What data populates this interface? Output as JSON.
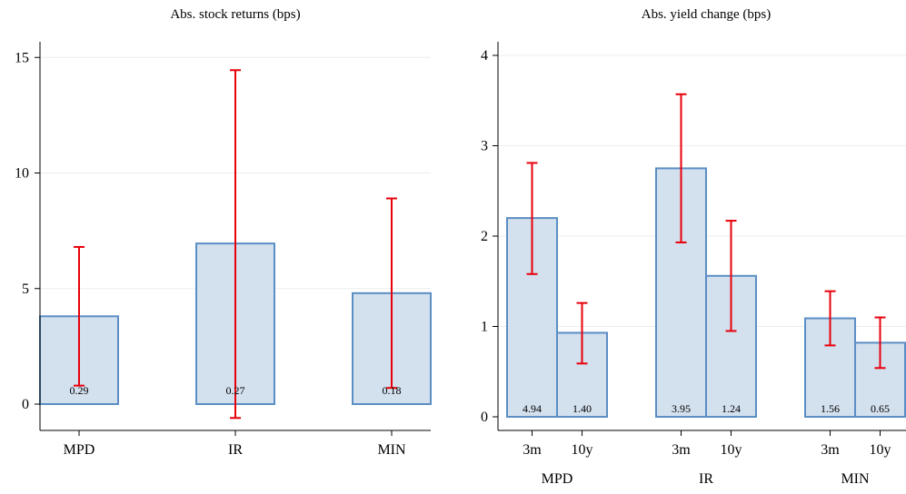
{
  "chart_data": [
    {
      "type": "bar",
      "title": "Abs. stock returns (bps)",
      "categories": [
        "MPD",
        "IR",
        "MIN"
      ],
      "values": [
        3.8,
        6.95,
        4.8
      ],
      "error_low": [
        0.8,
        -0.6,
        0.7
      ],
      "error_high": [
        6.8,
        14.45,
        8.9
      ],
      "bar_labels": [
        "0.29",
        "0.27",
        "0.18"
      ],
      "ylim": [
        0,
        15
      ],
      "yticks": [
        0,
        5,
        10,
        15
      ],
      "grid": true,
      "colors": {
        "bar_fill": "#d3e0ee",
        "bar_edge": "#5b8ec4",
        "error": "#e8000b",
        "grid": "#ececec"
      }
    },
    {
      "type": "bar",
      "title": "Abs. yield change (bps)",
      "categories": [
        "MPD",
        "IR",
        "MIN"
      ],
      "subcategories": [
        "3m",
        "10y"
      ],
      "values": [
        [
          2.2,
          0.93
        ],
        [
          2.75,
          1.56
        ],
        [
          1.09,
          0.82
        ]
      ],
      "error_low": [
        [
          1.58,
          0.59
        ],
        [
          1.93,
          0.95
        ],
        [
          0.79,
          0.54
        ]
      ],
      "error_high": [
        [
          2.81,
          1.26
        ],
        [
          3.57,
          2.17
        ],
        [
          1.39,
          1.1
        ]
      ],
      "bar_labels": [
        [
          "4.94",
          "1.40"
        ],
        [
          "3.95",
          "1.24"
        ],
        [
          "1.56",
          "0.65"
        ]
      ],
      "ylim": [
        0,
        4
      ],
      "yticks": [
        0,
        1,
        2,
        3,
        4
      ],
      "grid": true,
      "colors": {
        "bar_fill": "#d3e0ee",
        "bar_edge": "#5b8ec4",
        "error": "#e8000b",
        "grid": "#ececec"
      }
    }
  ]
}
